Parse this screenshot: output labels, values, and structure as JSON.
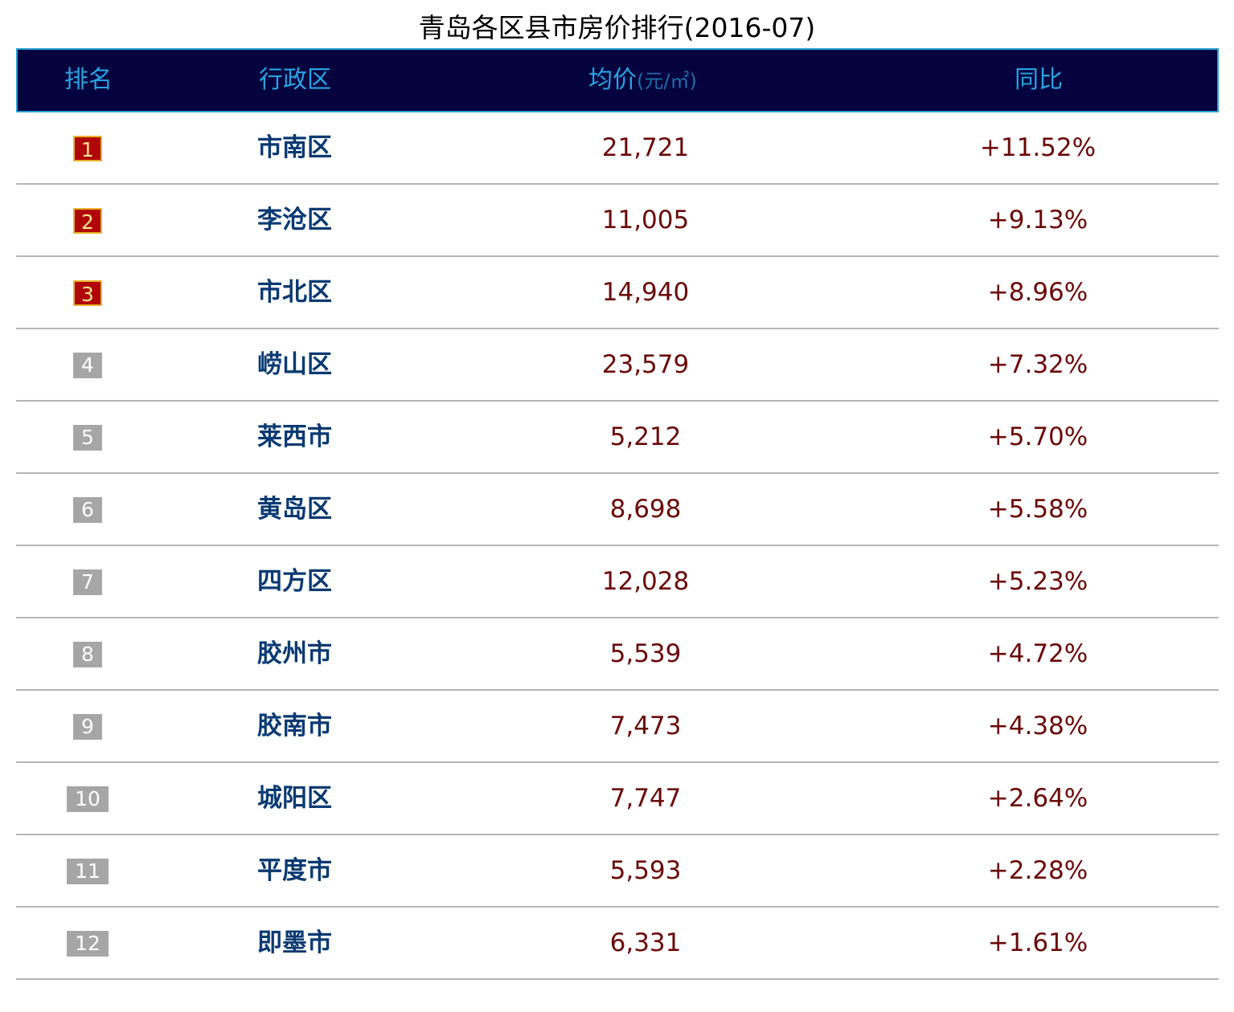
{
  "title": "青岛各区县市房价排行(2016-07)",
  "header": {
    "rank": "排名",
    "district": "行政区",
    "price": "均价",
    "price_unit": "(元/㎡)",
    "yoy": "同比"
  },
  "rows": [
    {
      "rank": "1",
      "district": "市南区",
      "price": "21,721",
      "yoy": "+11.52%"
    },
    {
      "rank": "2",
      "district": "李沧区",
      "price": "11,005",
      "yoy": "+9.13%"
    },
    {
      "rank": "3",
      "district": "市北区",
      "price": "14,940",
      "yoy": "+8.96%"
    },
    {
      "rank": "4",
      "district": "崂山区",
      "price": "23,579",
      "yoy": "+7.32%"
    },
    {
      "rank": "5",
      "district": "莱西市",
      "price": "5,212",
      "yoy": "+5.70%"
    },
    {
      "rank": "6",
      "district": "黄岛区",
      "price": "8,698",
      "yoy": "+5.58%"
    },
    {
      "rank": "7",
      "district": "四方区",
      "price": "12,028",
      "yoy": "+5.23%"
    },
    {
      "rank": "8",
      "district": "胶州市",
      "price": "5,539",
      "yoy": "+4.72%"
    },
    {
      "rank": "9",
      "district": "胶南市",
      "price": "7,473",
      "yoy": "+4.38%"
    },
    {
      "rank": "10",
      "district": "城阳区",
      "price": "7,747",
      "yoy": "+2.64%"
    },
    {
      "rank": "11",
      "district": "平度市",
      "price": "5,593",
      "yoy": "+2.28%"
    },
    {
      "rank": "12",
      "district": "即墨市",
      "price": "6,331",
      "yoy": "+1.61%"
    }
  ],
  "colors": {
    "header_bg": "#05033f",
    "header_text": "#29a3e0",
    "top3_badge": "#b0070a",
    "other_badge": "#a6a6a6",
    "district_text": "#0a3a72",
    "value_text": "#6b0a0a"
  }
}
